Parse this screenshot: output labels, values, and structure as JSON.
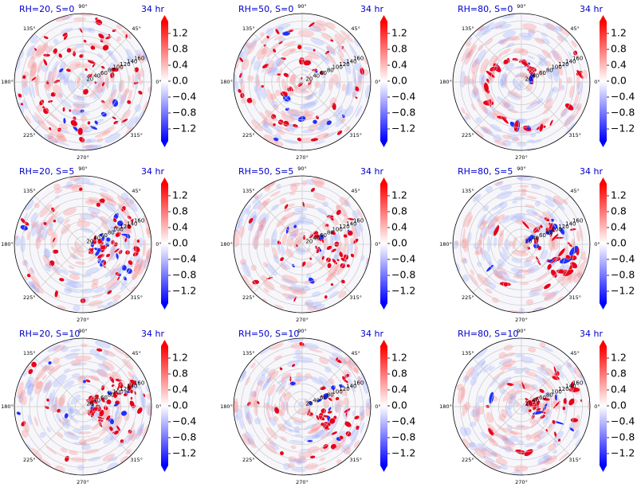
{
  "figure": {
    "colorbar": {
      "ticks": [
        "1.2",
        "0.8",
        "0.4",
        "0.0",
        "−0.4",
        "−0.8",
        "−1.2"
      ],
      "tick_values": [
        1.2,
        0.8,
        0.4,
        0.0,
        -0.4,
        -0.8,
        -1.2
      ],
      "range": [
        -1.5,
        1.5
      ],
      "colors": {
        "max": "#ff0000",
        "mid": "#ffffff",
        "min": "#0000ff"
      }
    },
    "polar_axes": {
      "angle_labels": [
        "0°",
        "45°",
        "90°",
        "135°",
        "180°",
        "225°",
        "270°",
        "315°"
      ],
      "radial_labels": [
        "20",
        "40",
        "60",
        "80",
        "100",
        "120",
        "140",
        "160"
      ],
      "radial_max": 180,
      "radial_label_angle_deg": 22.5
    },
    "title_color": "#0000cc"
  },
  "chart_data": [
    {
      "type": "heatmap",
      "projection": "polar",
      "title": "RH=20, S=0",
      "time_label": "34 hr"
    },
    {
      "type": "heatmap",
      "projection": "polar",
      "title": "RH=50, S=0",
      "time_label": "34 hr"
    },
    {
      "type": "heatmap",
      "projection": "polar",
      "title": "RH=80, S=0",
      "time_label": "34 hr"
    },
    {
      "type": "heatmap",
      "projection": "polar",
      "title": "RH=20, S=5",
      "time_label": "34 hr"
    },
    {
      "type": "heatmap",
      "projection": "polar",
      "title": "RH=50, S=5",
      "time_label": "34 hr"
    },
    {
      "type": "heatmap",
      "projection": "polar",
      "title": "RH=80, S=5",
      "time_label": "34 hr"
    },
    {
      "type": "heatmap",
      "projection": "polar",
      "title": "RH=20, S=10",
      "time_label": "34 hr"
    },
    {
      "type": "heatmap",
      "projection": "polar",
      "title": "RH=50, S=10",
      "time_label": "34 hr"
    },
    {
      "type": "heatmap",
      "projection": "polar",
      "title": "RH=80, S=10",
      "time_label": "34 hr"
    }
  ]
}
